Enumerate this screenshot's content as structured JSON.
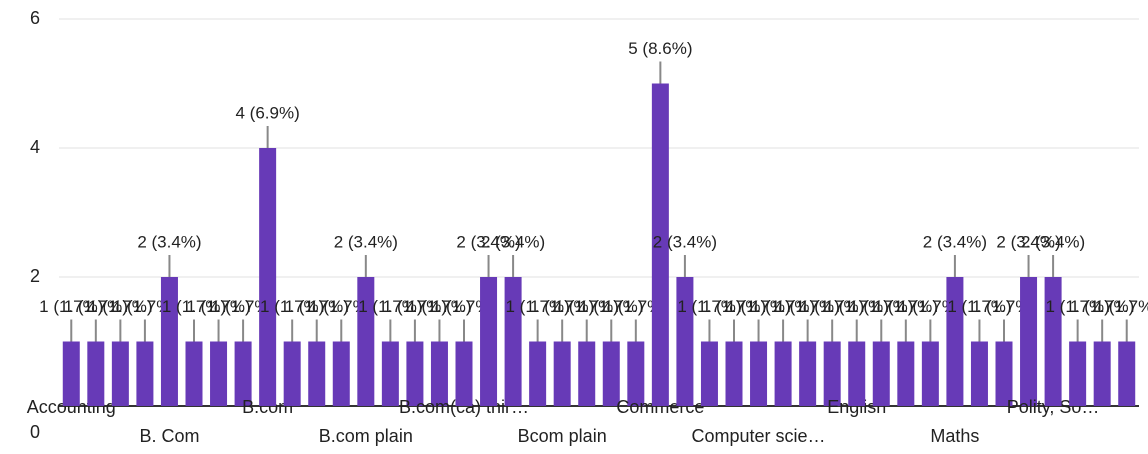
{
  "chart_data": {
    "type": "bar",
    "color": "#673ab7",
    "categories": [
      "Accounting",
      null,
      null,
      null,
      "B. Com",
      null,
      null,
      null,
      "B.com",
      null,
      null,
      null,
      "B.com plain",
      null,
      null,
      null,
      "B.com(ca) thir…",
      null,
      null,
      null,
      "Bcom plain",
      null,
      null,
      null,
      "Commerce",
      null,
      null,
      null,
      "Computer scie…",
      null,
      null,
      null,
      "English",
      null,
      null,
      null,
      "Maths",
      null,
      null,
      null,
      "Polity, So…",
      null,
      null,
      null
    ],
    "values": [
      1,
      1,
      1,
      1,
      2,
      1,
      1,
      1,
      4,
      1,
      1,
      1,
      2,
      1,
      1,
      1,
      1,
      2,
      2,
      1,
      1,
      1,
      1,
      1,
      5,
      2,
      1,
      1,
      1,
      1,
      1,
      1,
      1,
      1,
      1,
      1,
      2,
      1,
      1,
      2,
      2,
      1,
      1,
      1
    ],
    "value_labels": [
      "1 (1.7%)",
      "1 (1.7%)",
      "1 (1.7%)",
      "1 (1.7%)",
      "2 (3.4%)",
      "1 (1.7%)",
      "1 (1.7%)",
      "1 (1.7%)",
      "4 (6.9%)",
      "1 (1.7%)",
      "1 (1.7%)",
      "1 (1.7%)",
      "2 (3.4%)",
      "1 (1.7%)",
      "1 (1.7%)",
      "1 (1.7%)",
      "1 (1.7%)",
      "2 (3.4%)",
      "2 (3.4%)",
      "1 (1.7%)",
      "1 (1.7%)",
      "1 (1.7%)",
      "1 (1.7%)",
      "1 (1.7%)",
      "5 (8.6%)",
      "2 (3.4%)",
      "1 (1.7%)",
      "1 (1.7%)",
      "1 (1.7%)",
      "1 (1.7%)",
      "1 (1.7%)",
      "1 (1.7%)",
      "1 (1.7%)",
      "1 (1.7%)",
      "1 (1.7%)",
      "1 (1.7%)",
      "2 (3.4%)",
      "1 (1.7%)",
      "1 (1.7%)",
      "2 (3.4%)",
      "2 (3.4%)",
      "1 (1.7%)",
      "1 (1.7%)",
      "1 (1.7%)"
    ],
    "ylim": [
      0,
      6
    ],
    "yticks": [
      0,
      2,
      4,
      6
    ],
    "grid": true
  }
}
